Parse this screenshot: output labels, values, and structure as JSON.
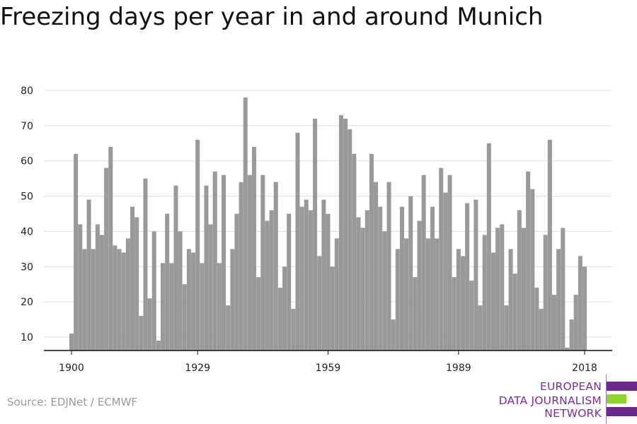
{
  "title": "Freezing days per year in and around Munich",
  "source": "Source: EDJNet / ECMWF",
  "logo": {
    "lines": [
      "EUROPEAN",
      "DATA JOURNALISM",
      "NETWORK"
    ],
    "colors": [
      "#6a2a8c",
      "#8cd52c",
      "#6a2a8c"
    ]
  },
  "chart_data": {
    "type": "bar",
    "xlabel": "",
    "ylabel": "",
    "title": "",
    "grid": true,
    "bar_color": "#999999",
    "ylim": [
      6,
      80
    ],
    "yticks": [
      10,
      20,
      30,
      40,
      50,
      60,
      70,
      80
    ],
    "xticks": [
      1900,
      1929,
      1959,
      1989,
      2018
    ],
    "x_start": 1900,
    "x_end": 2018,
    "values": [
      11,
      62,
      42,
      35,
      49,
      35,
      42,
      39,
      58,
      64,
      36,
      35,
      34,
      38,
      47,
      44,
      16,
      55,
      21,
      40,
      9,
      31,
      45,
      31,
      53,
      40,
      25,
      35,
      34,
      66,
      31,
      53,
      42,
      57,
      31,
      56,
      19,
      35,
      45,
      54,
      78,
      56,
      64,
      27,
      56,
      43,
      46,
      54,
      24,
      30,
      45,
      18,
      68,
      47,
      49,
      46,
      72,
      33,
      49,
      45,
      30,
      38,
      73,
      72,
      69,
      62,
      44,
      41,
      46,
      62,
      54,
      47,
      40,
      54,
      15,
      35,
      47,
      38,
      50,
      27,
      43,
      56,
      38,
      47,
      38,
      58,
      51,
      56,
      27,
      35,
      33,
      48,
      26,
      49,
      19,
      39,
      65,
      34,
      41,
      42,
      19,
      35,
      28,
      46,
      41,
      57,
      52,
      24,
      18,
      39,
      66,
      22,
      35,
      41,
      7,
      15,
      22,
      33,
      30
    ]
  }
}
